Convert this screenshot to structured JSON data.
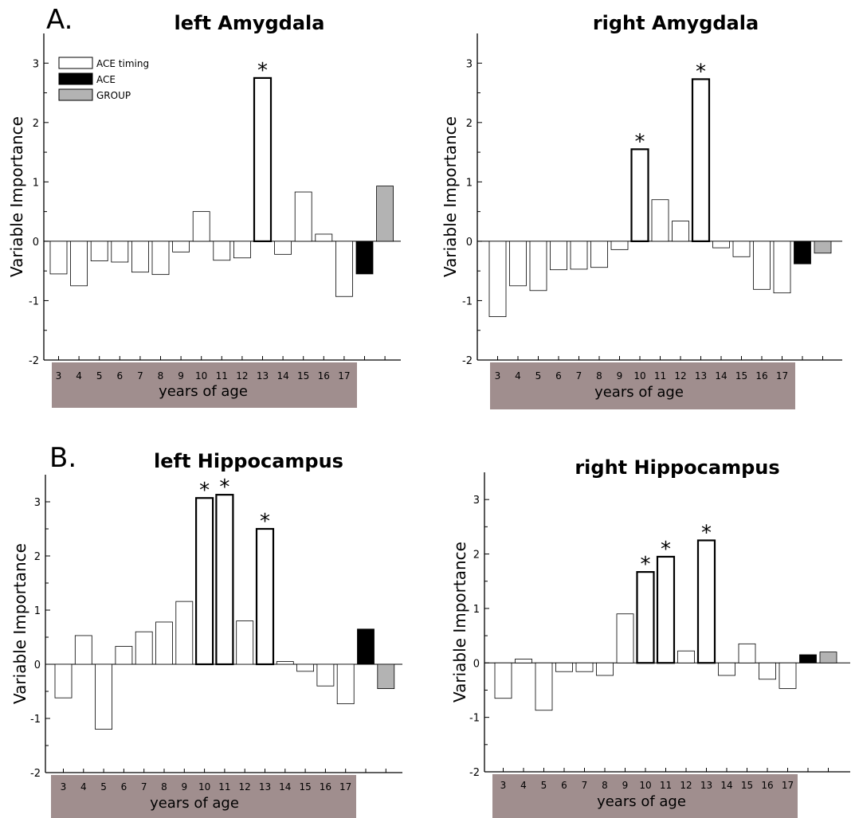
{
  "panel_labels": [
    "A.",
    "B."
  ],
  "legend": {
    "entries": [
      {
        "label": "ACE timing",
        "color": "#ffffff"
      },
      {
        "label": "ACE",
        "color": "#000000"
      },
      {
        "label": "GROUP",
        "color": "#b3b3b3"
      }
    ]
  },
  "colors": {
    "age_band": "#a08e8e",
    "ace": "#000000",
    "group": "#b3b3b3",
    "timing": "#ffffff"
  },
  "chart_data": [
    {
      "type": "bar",
      "title": "left Amygdala",
      "ylabel": "Variable Importance",
      "xlabel": "years of age",
      "ylim": [
        -2,
        3.5
      ],
      "yticks": [
        -2,
        -1,
        0,
        1,
        2,
        3
      ],
      "categories": [
        "3",
        "4",
        "5",
        "6",
        "7",
        "8",
        "9",
        "10",
        "11",
        "12",
        "13",
        "14",
        "15",
        "16",
        "17",
        "",
        ""
      ],
      "kinds": [
        "timing",
        "timing",
        "timing",
        "timing",
        "timing",
        "timing",
        "timing",
        "timing",
        "timing",
        "timing",
        "timing",
        "timing",
        "timing",
        "timing",
        "timing",
        "ace",
        "group"
      ],
      "values": [
        -0.55,
        -0.75,
        -0.33,
        -0.35,
        -0.52,
        -0.56,
        -0.18,
        0.5,
        -0.32,
        -0.28,
        2.75,
        -0.22,
        0.83,
        0.12,
        -0.93,
        -0.55,
        0.93
      ],
      "significant": [
        false,
        false,
        false,
        false,
        false,
        false,
        false,
        false,
        false,
        false,
        true,
        false,
        false,
        false,
        false,
        false,
        false
      ],
      "legend": "top-left"
    },
    {
      "type": "bar",
      "title": "right Amygdala",
      "ylabel": "Variable Importance",
      "xlabel": "years of age",
      "ylim": [
        -2,
        3.5
      ],
      "yticks": [
        -2,
        -1,
        0,
        1,
        2,
        3
      ],
      "categories": [
        "3",
        "4",
        "5",
        "6",
        "7",
        "8",
        "9",
        "10",
        "11",
        "12",
        "13",
        "14",
        "15",
        "16",
        "17",
        "",
        ""
      ],
      "kinds": [
        "timing",
        "timing",
        "timing",
        "timing",
        "timing",
        "timing",
        "timing",
        "timing",
        "timing",
        "timing",
        "timing",
        "timing",
        "timing",
        "timing",
        "timing",
        "ace",
        "group"
      ],
      "values": [
        -1.27,
        -0.75,
        -0.83,
        -0.48,
        -0.47,
        -0.44,
        -0.14,
        1.55,
        0.7,
        0.34,
        2.73,
        -0.11,
        -0.26,
        -0.81,
        -0.87,
        -0.38,
        -0.2
      ],
      "significant": [
        false,
        false,
        false,
        false,
        false,
        false,
        false,
        true,
        false,
        false,
        true,
        false,
        false,
        false,
        false,
        false,
        false
      ]
    },
    {
      "type": "bar",
      "title": "left Hippocampus",
      "ylabel": "Variable Importance",
      "xlabel": "years of age",
      "ylim": [
        -2,
        3.5
      ],
      "yticks": [
        -2,
        -1,
        0,
        1,
        2,
        3
      ],
      "categories": [
        "3",
        "4",
        "5",
        "6",
        "7",
        "8",
        "9",
        "10",
        "11",
        "12",
        "13",
        "14",
        "15",
        "16",
        "17",
        "",
        ""
      ],
      "kinds": [
        "timing",
        "timing",
        "timing",
        "timing",
        "timing",
        "timing",
        "timing",
        "timing",
        "timing",
        "timing",
        "timing",
        "timing",
        "timing",
        "timing",
        "timing",
        "ace",
        "group"
      ],
      "values": [
        -0.62,
        0.53,
        -1.2,
        0.33,
        0.6,
        0.78,
        1.16,
        3.07,
        3.13,
        0.8,
        2.5,
        0.05,
        -0.13,
        -0.4,
        -0.73,
        0.65,
        -0.45
      ],
      "significant": [
        false,
        false,
        false,
        false,
        false,
        false,
        false,
        true,
        true,
        false,
        true,
        false,
        false,
        false,
        false,
        false,
        false
      ]
    },
    {
      "type": "bar",
      "title": "right Hippocampus",
      "ylabel": "Variable Importance",
      "xlabel": "years of age",
      "ylim": [
        -2,
        3.5
      ],
      "yticks": [
        -2,
        -1,
        0,
        1,
        2,
        3
      ],
      "categories": [
        "3",
        "4",
        "5",
        "6",
        "7",
        "8",
        "9",
        "10",
        "11",
        "12",
        "13",
        "14",
        "15",
        "16",
        "17",
        "",
        ""
      ],
      "kinds": [
        "timing",
        "timing",
        "timing",
        "timing",
        "timing",
        "timing",
        "timing",
        "timing",
        "timing",
        "timing",
        "timing",
        "timing",
        "timing",
        "timing",
        "timing",
        "ace",
        "group"
      ],
      "values": [
        -0.65,
        0.07,
        -0.87,
        -0.16,
        -0.16,
        -0.23,
        0.9,
        1.67,
        1.95,
        0.22,
        2.25,
        -0.23,
        0.35,
        -0.3,
        -0.47,
        0.15,
        0.2
      ],
      "significant": [
        false,
        false,
        false,
        false,
        false,
        false,
        false,
        true,
        true,
        false,
        true,
        false,
        false,
        false,
        false,
        false,
        false
      ]
    }
  ]
}
